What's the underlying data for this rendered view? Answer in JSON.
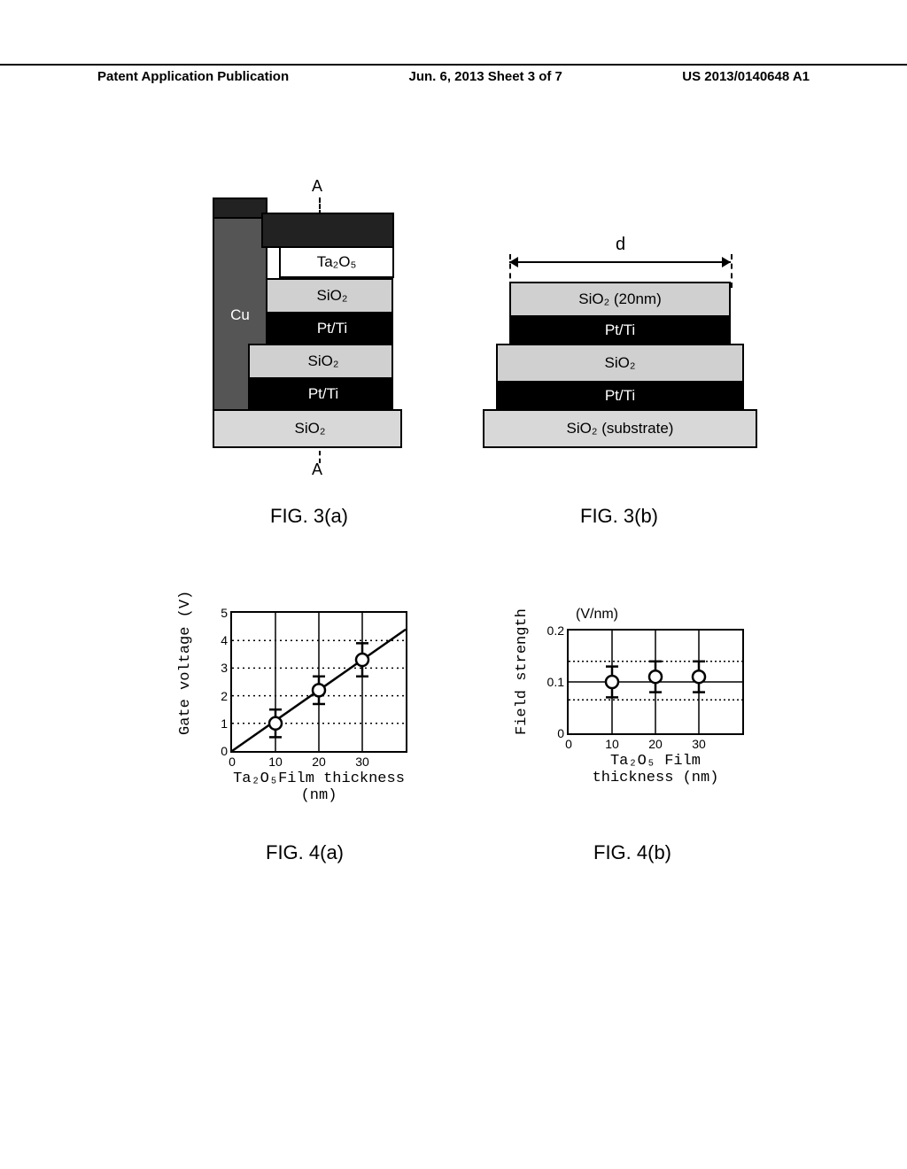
{
  "header": {
    "left": "Patent Application Publication",
    "center": "Jun. 6, 2013  Sheet 3 of 7",
    "right": "US 2013/0140648 A1"
  },
  "fig3a": {
    "label_top": "A",
    "label_bot": "A",
    "layers": {
      "cu": "Cu",
      "ta2o5": "Ta₂O₅",
      "sio2_1": "SiO₂",
      "pt1": "Pt/Ti",
      "sio2_2": "SiO₂",
      "pt2": "Pt/Ti",
      "sio2_3": "SiO₂"
    },
    "caption": "FIG. 3(a)"
  },
  "fig3b": {
    "d_label": "d",
    "layers": {
      "sio2_top": "SiO₂ (20nm)",
      "pt1": "Pt/Ti",
      "sio2_mid": "SiO₂",
      "pt2": "Pt/Ti",
      "sio2_sub": "SiO₂ (substrate)"
    },
    "caption": "FIG. 3(b)"
  },
  "fig4a": {
    "type": "scatter-line",
    "ylabel": "Gate voltage (V)",
    "xlabel": "Ta₂O₅Film thickness (nm)",
    "caption": "FIG. 4(a)",
    "xlim": [
      0,
      40
    ],
    "ylim": [
      0,
      5
    ],
    "xticks": [
      0,
      10,
      20,
      30
    ],
    "yticks": [
      0,
      1,
      2,
      3,
      4,
      5
    ],
    "data": [
      {
        "x": 10,
        "y": 1.0,
        "err": 0.5
      },
      {
        "x": 20,
        "y": 2.2,
        "err": 0.5
      },
      {
        "x": 30,
        "y": 3.3,
        "err": 0.6
      }
    ],
    "fit_line": {
      "x1": 0,
      "y1": 0,
      "x2": 40,
      "y2": 4.4
    },
    "marker_color": "#ffffff",
    "marker_stroke": "#000000",
    "line_color": "#000000",
    "grid_color": "#000000",
    "grid_style": "dotted",
    "background_color": "#ffffff"
  },
  "fig4b": {
    "type": "scatter",
    "ylabel": "Field strength",
    "yunit": "(V/nm)",
    "xlabel": "Ta₂O₅ Film thickness (nm)",
    "caption": "FIG. 4(b)",
    "xlim": [
      0,
      40
    ],
    "ylim": [
      0,
      0.2
    ],
    "xticks": [
      0,
      10,
      20,
      30
    ],
    "yticks": [
      0,
      0.1,
      0.2
    ],
    "data": [
      {
        "x": 10,
        "y": 0.1,
        "err": 0.03
      },
      {
        "x": 20,
        "y": 0.11,
        "err": 0.03
      },
      {
        "x": 30,
        "y": 0.11,
        "err": 0.03
      }
    ],
    "ref_lines": [
      0.065,
      0.14
    ],
    "marker_color": "#ffffff",
    "marker_stroke": "#000000",
    "line_color": "#000000",
    "grid_color": "#000000",
    "grid_style": "dotted",
    "background_color": "#ffffff"
  }
}
